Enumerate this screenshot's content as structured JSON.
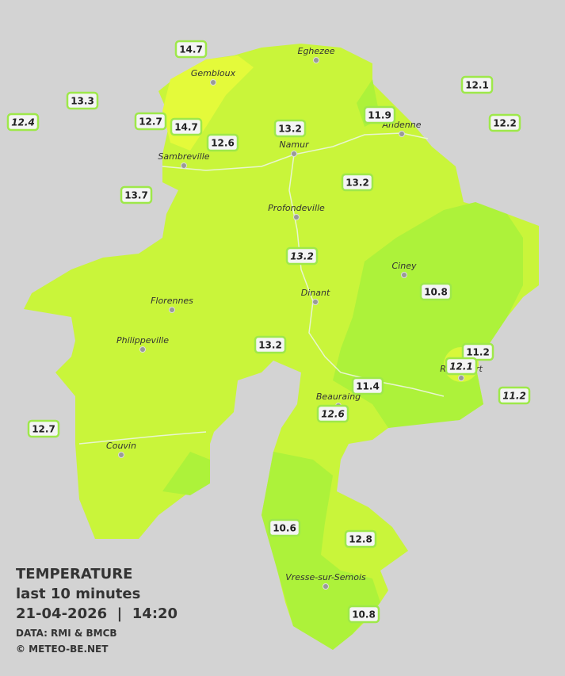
{
  "legend": {
    "title": "TEMPERATURE",
    "period": "last 10 minutes",
    "datetime": "21-04-2026  |  14:20",
    "source": "DATA: RMI & BMCB",
    "credit": "© METEO-BE.NET"
  },
  "towns": [
    "Eghezee",
    "Gembloux",
    "Andenne",
    "Namur",
    "Sambreville",
    "Profondeville",
    "Ciney",
    "Dinant",
    "Florennes",
    "Philippeville",
    "Rochefort",
    "Beauraing",
    "Couvin",
    "Vresse-sur-Semois"
  ],
  "stations": [
    {
      "value": 14.7,
      "italic": false
    },
    {
      "value": 13.3,
      "italic": false
    },
    {
      "value": 12.4,
      "italic": true
    },
    {
      "value": 12.7,
      "italic": false
    },
    {
      "value": 14.7,
      "italic": false
    },
    {
      "value": 12.6,
      "italic": false
    },
    {
      "value": 13.2,
      "italic": false
    },
    {
      "value": 11.9,
      "italic": false
    },
    {
      "value": 12.1,
      "italic": false
    },
    {
      "value": 12.2,
      "italic": false
    },
    {
      "value": 13.2,
      "italic": false
    },
    {
      "value": 13.7,
      "italic": false
    },
    {
      "value": 13.2,
      "italic": true
    },
    {
      "value": 10.8,
      "italic": false
    },
    {
      "value": 13.2,
      "italic": false
    },
    {
      "value": 11.2,
      "italic": false
    },
    {
      "value": 12.1,
      "italic": true
    },
    {
      "value": 11.4,
      "italic": false
    },
    {
      "value": 11.2,
      "italic": true
    },
    {
      "value": 12.6,
      "italic": true
    },
    {
      "value": 12.7,
      "italic": false
    },
    {
      "value": 10.6,
      "italic": false
    },
    {
      "value": 12.8,
      "italic": false
    },
    {
      "value": 10.8,
      "italic": false
    }
  ]
}
